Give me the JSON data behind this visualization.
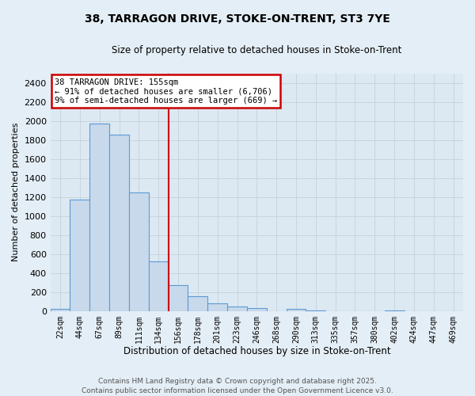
{
  "title1": "38, TARRAGON DRIVE, STOKE-ON-TRENT, ST3 7YE",
  "title2": "Size of property relative to detached houses in Stoke-on-Trent",
  "xlabel": "Distribution of detached houses by size in Stoke-on-Trent",
  "ylabel": "Number of detached properties",
  "categories": [
    "22sqm",
    "44sqm",
    "67sqm",
    "89sqm",
    "111sqm",
    "134sqm",
    "156sqm",
    "178sqm",
    "201sqm",
    "223sqm",
    "246sqm",
    "268sqm",
    "290sqm",
    "313sqm",
    "335sqm",
    "357sqm",
    "380sqm",
    "402sqm",
    "424sqm",
    "447sqm",
    "469sqm"
  ],
  "values": [
    25,
    1170,
    1970,
    1855,
    1245,
    520,
    270,
    155,
    85,
    45,
    35,
    0,
    20,
    10,
    0,
    0,
    0,
    8,
    0,
    0,
    0
  ],
  "bar_color": "#c8d9eb",
  "bar_edge_color": "#5b9bd5",
  "vline_x": 5.5,
  "annotation_label": "38 TARRAGON DRIVE: 155sqm",
  "annotation_line1": "← 91% of detached houses are smaller (6,706)",
  "annotation_line2": "9% of semi-detached houses are larger (669) →",
  "annotation_box_facecolor": "#ffffff",
  "annotation_box_edgecolor": "#cc0000",
  "vline_color": "#cc0000",
  "ylim": [
    0,
    2500
  ],
  "yticks": [
    0,
    200,
    400,
    600,
    800,
    1000,
    1200,
    1400,
    1600,
    1800,
    2000,
    2200,
    2400
  ],
  "grid_color": "#c8d4de",
  "plot_bg_color": "#dce8f2",
  "fig_bg_color": "#e4eef6",
  "footer1": "Contains HM Land Registry data © Crown copyright and database right 2025.",
  "footer2": "Contains public sector information licensed under the Open Government Licence v3.0."
}
